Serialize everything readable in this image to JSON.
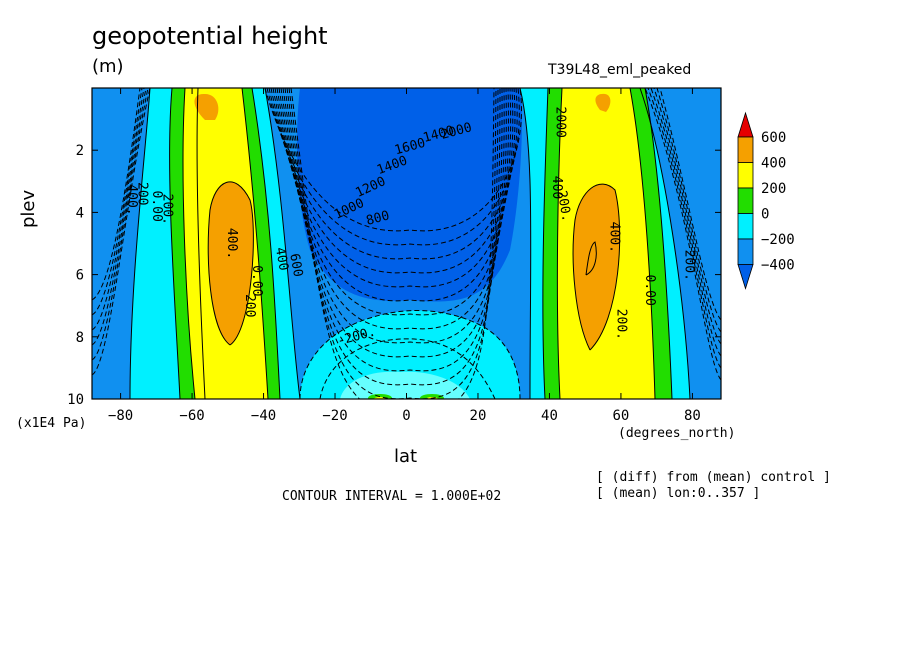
{
  "header": {
    "title": "geopotential height",
    "units": "(m)",
    "run": "T39L48_eml_peaked"
  },
  "notes": {
    "contour_interval": "CONTOUR INTERVAL = 1.000E+02",
    "diff": "[ (diff) from (mean) control ]",
    "mean": "[ (mean) lon:0..357 ]"
  },
  "colors": {
    "c600": "#e60000",
    "c400": "#f5a000",
    "c200": "#ffff00",
    "c0": "#22dd00",
    "cm200": "#00f0ff",
    "cm400": "#1090f0",
    "cm600": "#0060e8"
  },
  "chart_data": {
    "type": "contour",
    "variable": "geopotential height",
    "units": "m",
    "xlabel": "lat",
    "ylabel": "plev",
    "x_units": "(degrees_north)",
    "y_units": "(x1E4 Pa)",
    "xlim": [
      -88,
      88
    ],
    "ylim": [
      0,
      10
    ],
    "y_inverted": true,
    "xticks": [
      -80,
      -60,
      -40,
      -20,
      0,
      20,
      40,
      60,
      80
    ],
    "yticks": [
      2,
      4,
      6,
      8,
      10
    ],
    "contour_interval": 100,
    "colorbar": {
      "levels": [
        600,
        400,
        200,
        0,
        -200,
        -400
      ],
      "labels": [
        "600",
        "400",
        "200",
        "0",
        "−200",
        "−400"
      ]
    },
    "contour_labels": [
      {
        "text": "400.",
        "lat": -49,
        "plev": 5.0,
        "rot": 90
      },
      {
        "text": "200",
        "lat": -44,
        "plev": 7.0,
        "rot": 90
      },
      {
        "text": "0.00",
        "lat": -42,
        "plev": 6.2,
        "rot": 90
      },
      {
        "text": "400.",
        "lat": -77,
        "plev": 3.6,
        "rot": 90
      },
      {
        "text": "200",
        "lat": -74,
        "plev": 3.4,
        "rot": 90
      },
      {
        "text": "0.00",
        "lat": -70,
        "plev": 3.8,
        "rot": 90
      },
      {
        "text": "200.",
        "lat": -67,
        "plev": 3.9,
        "rot": 90
      },
      {
        "text": "400",
        "lat": -35,
        "plev": 5.5,
        "rot": 80
      },
      {
        "text": "600",
        "lat": -31,
        "plev": 5.7,
        "rot": 80
      },
      {
        "text": "800",
        "lat": -8,
        "plev": 4.2,
        "rot": -15
      },
      {
        "text": "1000",
        "lat": -16,
        "plev": 3.9,
        "rot": -25
      },
      {
        "text": "1200",
        "lat": -10,
        "plev": 3.2,
        "rot": -25
      },
      {
        "text": "1400",
        "lat": -4,
        "plev": 2.5,
        "rot": -20
      },
      {
        "text": "1600",
        "lat": 1,
        "plev": 1.9,
        "rot": -15
      },
      {
        "text": "1400",
        "lat": 9,
        "plev": 1.5,
        "rot": -15
      },
      {
        "text": "2000",
        "lat": 14,
        "plev": 1.4,
        "rot": -15
      },
      {
        "text": "-200.",
        "lat": -14,
        "plev": 8.0,
        "rot": -15
      },
      {
        "text": "400",
        "lat": 42,
        "plev": 3.2,
        "rot": 90
      },
      {
        "text": "2000",
        "lat": 43,
        "plev": 1.1,
        "rot": 90
      },
      {
        "text": "200.",
        "lat": 44,
        "plev": 3.8,
        "rot": 80
      },
      {
        "text": "400.",
        "lat": 58,
        "plev": 4.8,
        "rot": 90
      },
      {
        "text": "200.",
        "lat": 60,
        "plev": 7.6,
        "rot": 90
      },
      {
        "text": "0.00",
        "lat": 68,
        "plev": 6.5,
        "rot": 90
      },
      {
        "text": "200.",
        "lat": 79,
        "plev": 5.7,
        "rot": 90
      }
    ]
  }
}
